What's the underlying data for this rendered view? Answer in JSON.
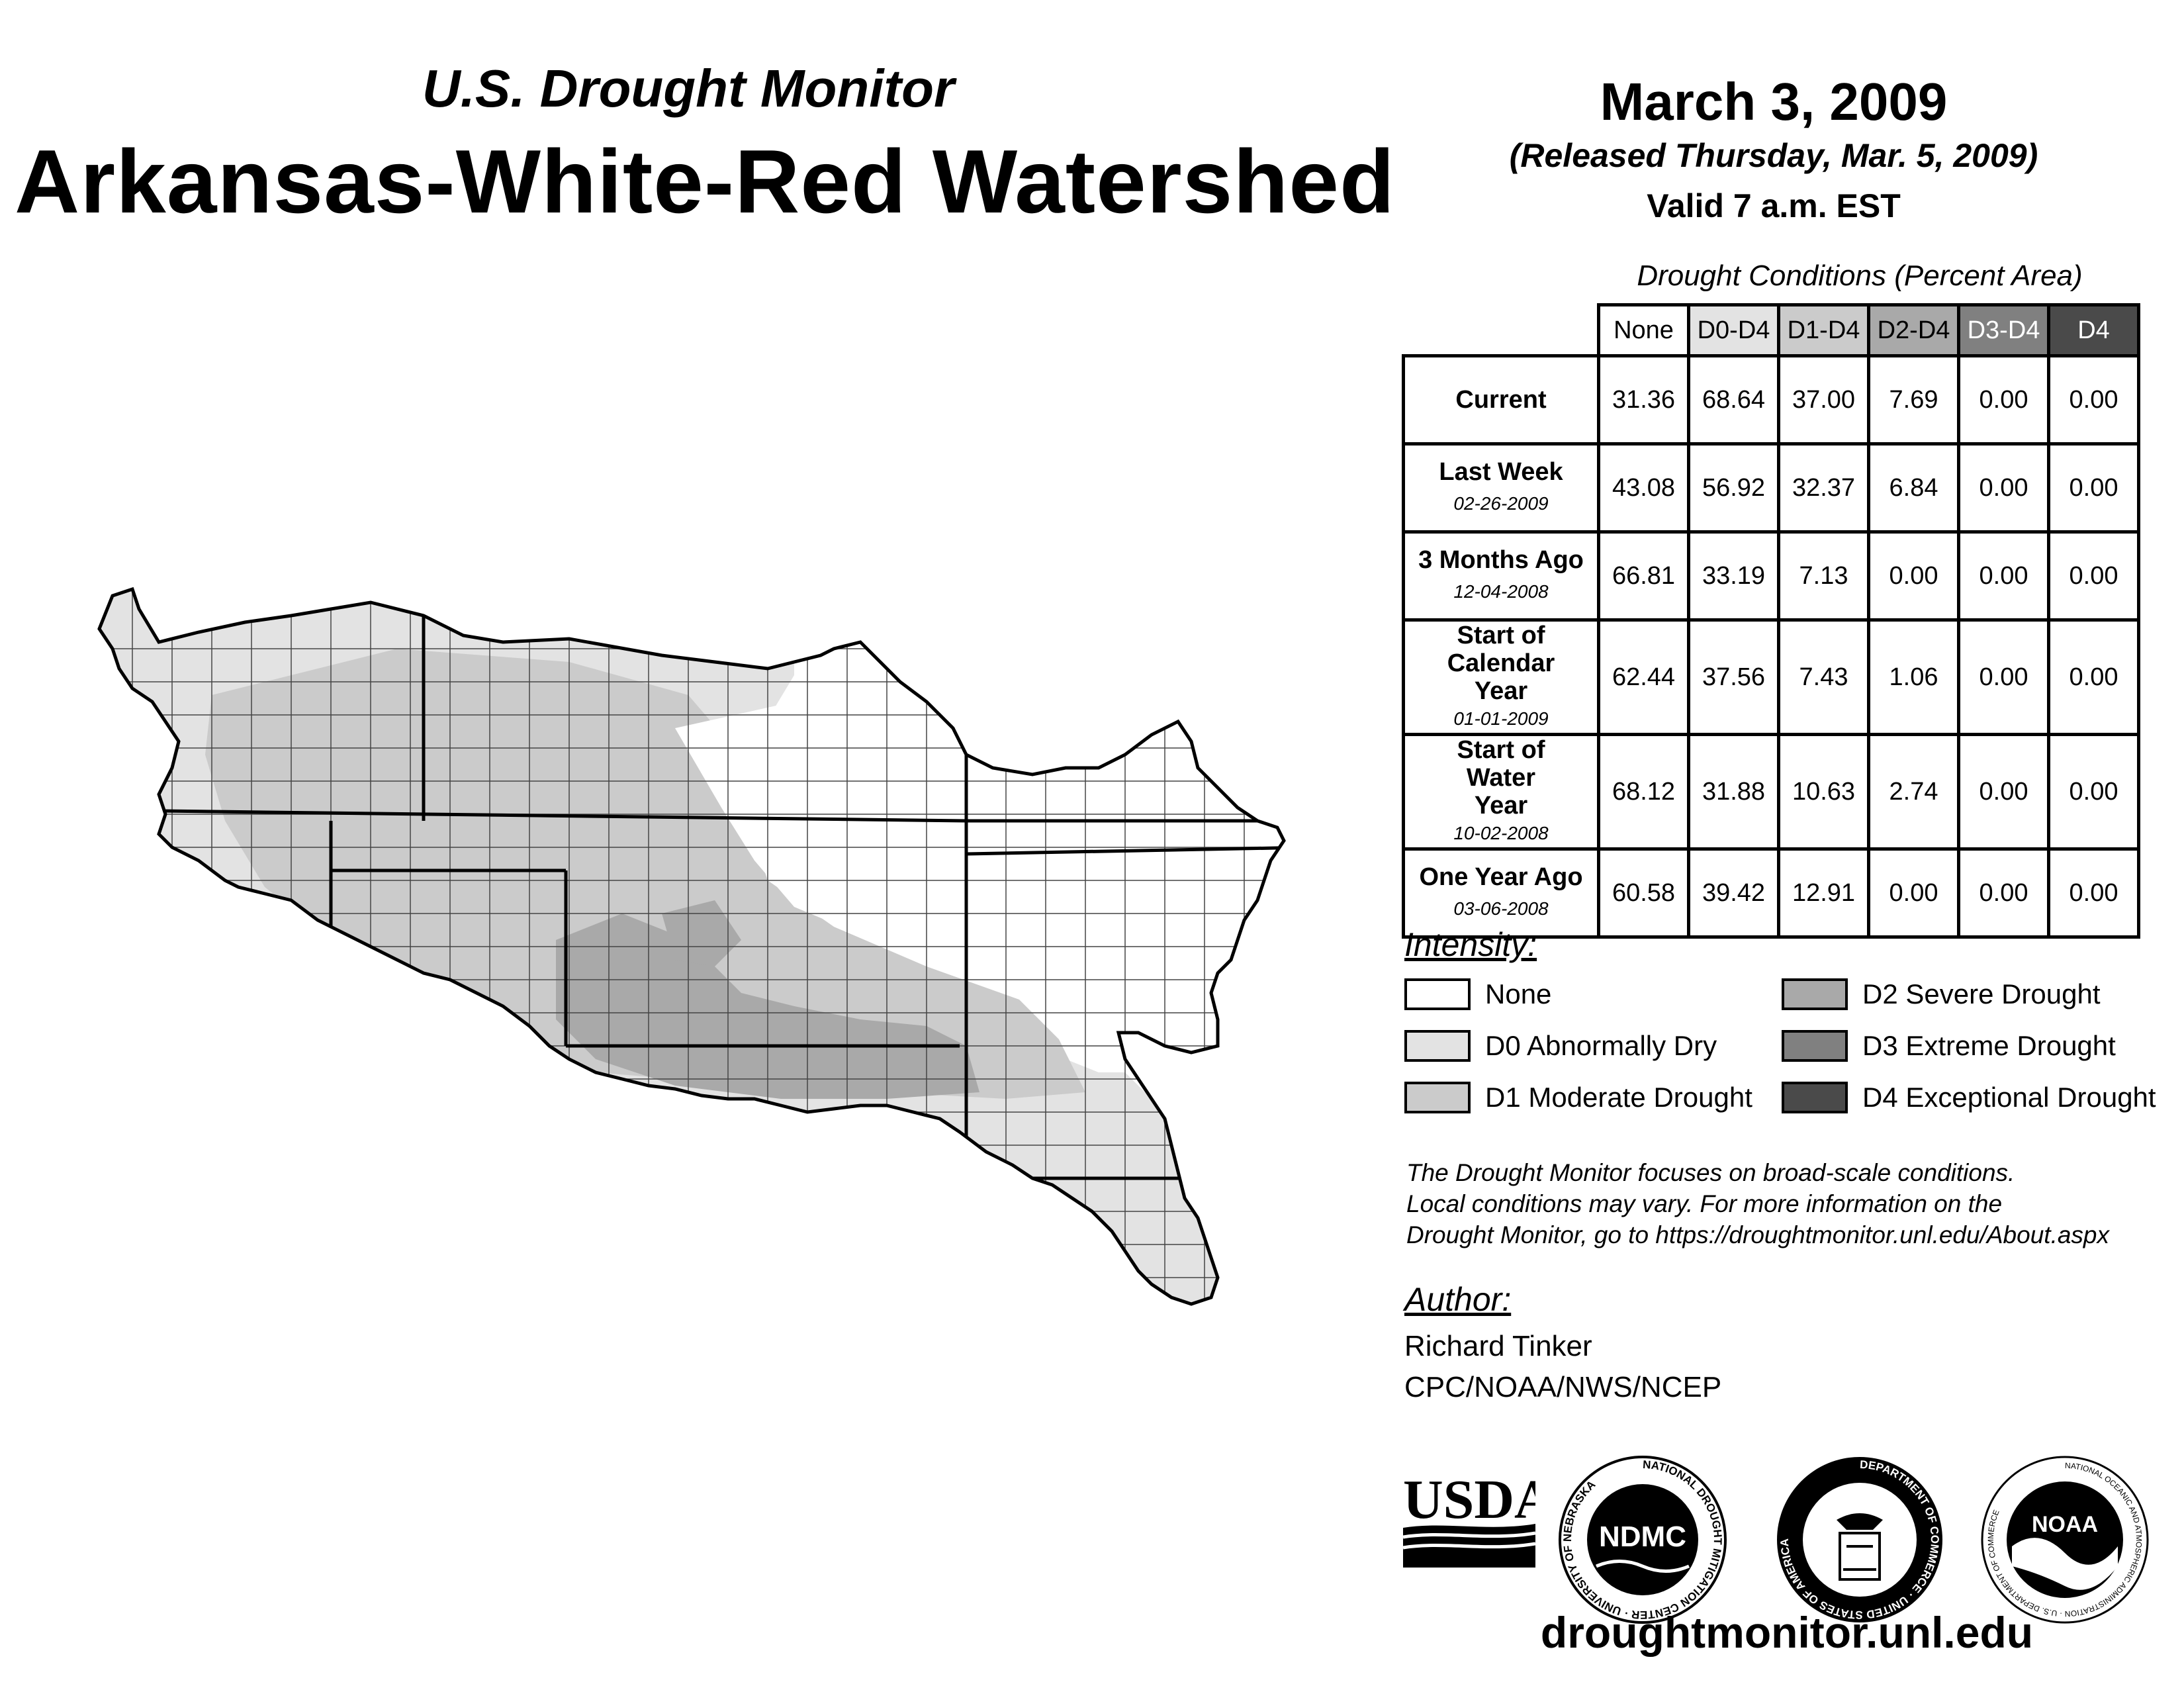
{
  "header": {
    "subtitle": "U.S. Drought Monitor",
    "title": "Arkansas-White-Red Watershed",
    "date": "March 3, 2009",
    "released": "(Released Thursday, Mar. 5, 2009)",
    "valid": "Valid 7 a.m. EST"
  },
  "table": {
    "caption": "Drought Conditions (Percent Area)",
    "columns": [
      "None",
      "D0-D4",
      "D1-D4",
      "D2-D4",
      "D3-D4",
      "D4"
    ],
    "rows": [
      {
        "label": "Current",
        "date": "",
        "values": [
          "31.36",
          "68.64",
          "37.00",
          "7.69",
          "0.00",
          "0.00"
        ]
      },
      {
        "label": "Last Week",
        "date": "02-26-2009",
        "values": [
          "43.08",
          "56.92",
          "32.37",
          "6.84",
          "0.00",
          "0.00"
        ]
      },
      {
        "label": "3 Months Ago",
        "date": "12-04-2008",
        "values": [
          "66.81",
          "33.19",
          "7.13",
          "0.00",
          "0.00",
          "0.00"
        ]
      },
      {
        "label": "Start of Calendar Year",
        "date": "01-01-2009",
        "values": [
          "62.44",
          "37.56",
          "7.43",
          "1.06",
          "0.00",
          "0.00"
        ]
      },
      {
        "label": "Start of Water Year",
        "date": "10-02-2008",
        "values": [
          "68.12",
          "31.88",
          "10.63",
          "2.74",
          "0.00",
          "0.00"
        ]
      },
      {
        "label": "One Year Ago",
        "date": "03-06-2008",
        "values": [
          "60.58",
          "39.42",
          "12.91",
          "0.00",
          "0.00",
          "0.00"
        ]
      }
    ]
  },
  "intensity": {
    "heading": "Intensity:",
    "items": [
      {
        "label": "None",
        "color": "#ffffff"
      },
      {
        "label": "D0 Abnormally Dry",
        "color": "#e3e3e3"
      },
      {
        "label": "D1 Moderate Drought",
        "color": "#cbcbcb"
      },
      {
        "label": "D2 Severe Drought",
        "color": "#a9a9a9"
      },
      {
        "label": "D3 Extreme Drought",
        "color": "#808080"
      },
      {
        "label": "D4 Exceptional Drought",
        "color": "#4a4a4a"
      }
    ]
  },
  "note": {
    "line1": "The Drought Monitor focuses on broad-scale conditions.",
    "line2": "Local conditions may vary. For more information on the",
    "line3": "Drought Monitor, go to https://droughtmonitor.unl.edu/About.aspx"
  },
  "author": {
    "heading": "Author:",
    "name": "Richard Tinker",
    "org": "CPC/NOAA/NWS/NCEP"
  },
  "logos": {
    "usda": "USDA",
    "ndmc": "NDMC",
    "ndmc_ring": "NATIONAL DROUGHT MITIGATION CENTER · UNIVERSITY OF NEBRASKA",
    "doc_ring": "DEPARTMENT OF COMMERCE · UNITED STATES OF AMERICA",
    "noaa": "NOAA",
    "noaa_ring": "NATIONAL OCEANIC AND ATMOSPHERIC ADMINISTRATION · U.S. DEPARTMENT OF COMMERCE"
  },
  "footer": {
    "site": "droughtmonitor.unl.edu"
  }
}
